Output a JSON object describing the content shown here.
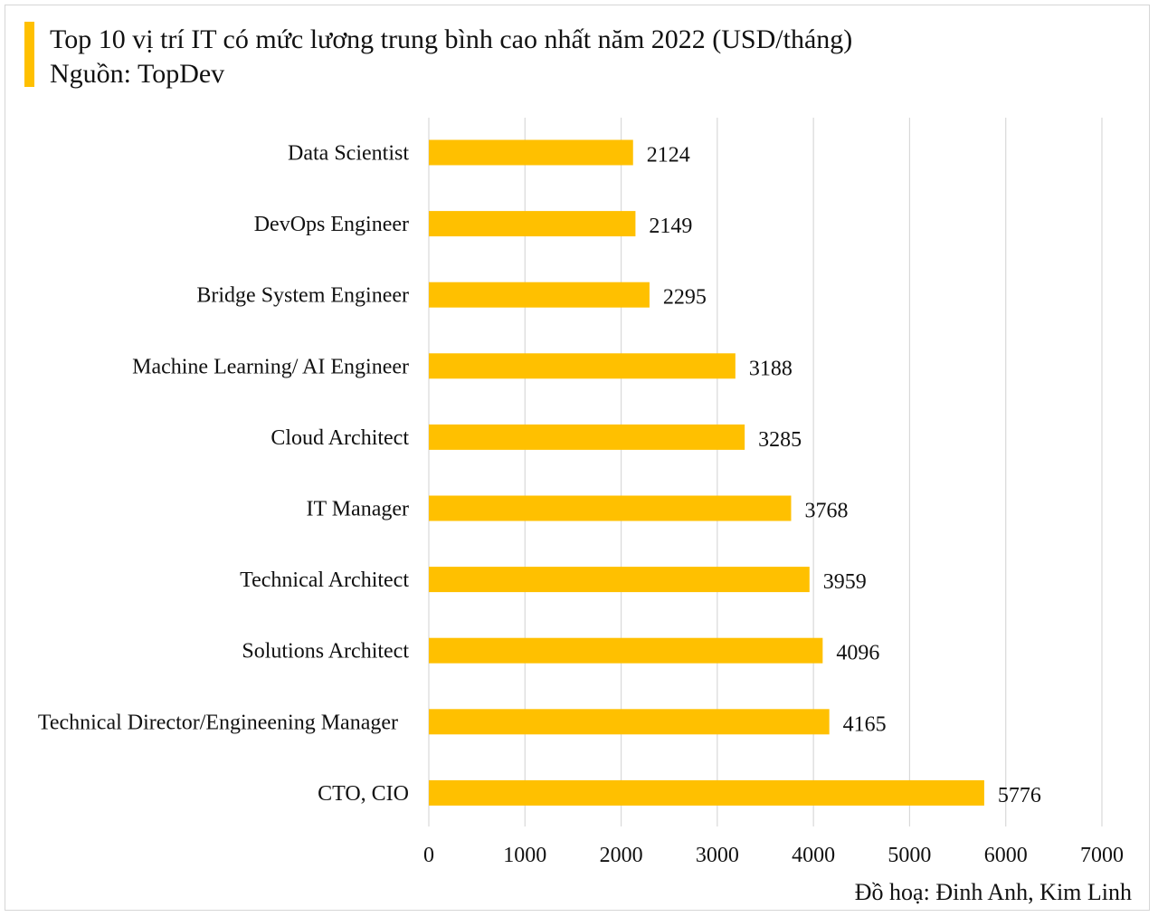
{
  "title_line_1": "Top 10 vị trí IT có mức lương trung bình cao nhất năm 2022 (USD/tháng)",
  "title_line_2": "Nguồn: TopDev",
  "credit": "Đồ hoạ: Đinh Anh, Kim Linh",
  "colors": {
    "bar": "#FFC000",
    "accent": "#FFC000",
    "grid": "#d9d9d9"
  },
  "chart_data": {
    "type": "bar",
    "orientation": "horizontal",
    "title": "Top 10 vị trí IT có mức lương trung bình cao nhất năm 2022 (USD/tháng)",
    "categories": [
      "Data Scientist",
      "DevOps Engineer",
      "Bridge System Engineer",
      "Machine Learning/ AI Engineer",
      "Cloud Architect",
      "IT Manager",
      "Technical Architect",
      "Solutions Architect",
      "Technical Director/Engineening Manager",
      "CTO, CIO"
    ],
    "values": [
      2124,
      2149,
      2295,
      3188,
      3285,
      3768,
      3959,
      4096,
      4165,
      5776
    ],
    "xlim": [
      0,
      7000
    ],
    "xticks": [
      0,
      1000,
      2000,
      3000,
      4000,
      5000,
      6000,
      7000
    ],
    "grid": true,
    "data_labels": true,
    "xlabel": "",
    "ylabel": ""
  }
}
